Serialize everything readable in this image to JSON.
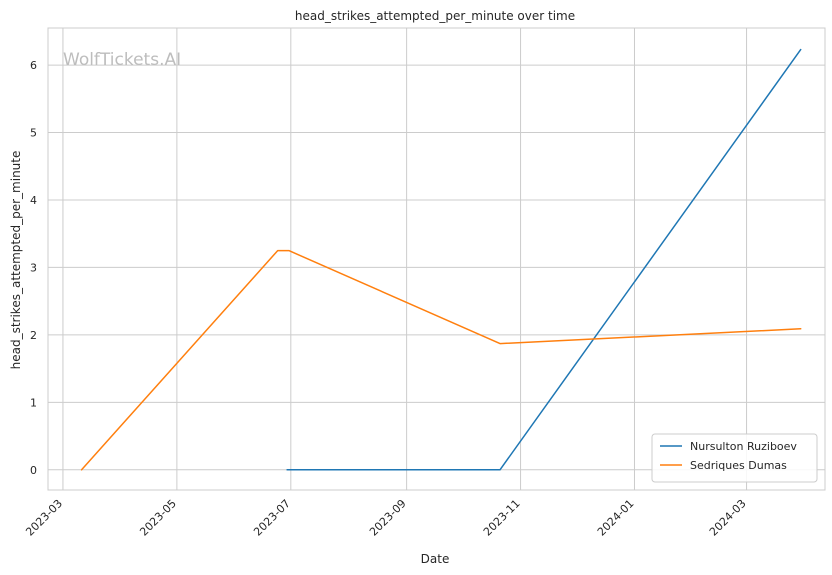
{
  "chart_data": {
    "type": "line",
    "title": "head_strikes_attempted_per_minute over time",
    "xlabel": "Date",
    "ylabel": "head_strikes_attempted_per_minute",
    "watermark": "WolfTickets.AI",
    "x_axis_type": "date",
    "xlim": [
      "2023-02-21",
      "2024-04-12"
    ],
    "ylim": [
      -0.3,
      6.55
    ],
    "x_ticks": [
      "2023-03-01",
      "2023-05-01",
      "2023-07-01",
      "2023-09-01",
      "2023-11-01",
      "2024-01-01",
      "2024-03-01"
    ],
    "x_tick_labels": [
      "2023-03",
      "2023-05",
      "2023-07",
      "2023-09",
      "2023-11",
      "2024-01",
      "2024-03"
    ],
    "y_ticks": [
      0,
      1,
      2,
      3,
      4,
      5,
      6
    ],
    "grid": true,
    "legend_position": "bottom-right",
    "series": [
      {
        "name": "Nursulton Ruziboev",
        "color": "#1f77b4",
        "x": [
          "2023-06-29",
          "2023-10-21",
          "2024-03-30"
        ],
        "values": [
          0,
          0,
          6.23
        ]
      },
      {
        "name": "Sedriques Dumas",
        "color": "#ff7f0e",
        "x": [
          "2023-03-11",
          "2023-06-24",
          "2023-06-30",
          "2023-10-21",
          "2024-03-30"
        ],
        "values": [
          0,
          3.25,
          3.25,
          1.87,
          2.09
        ]
      }
    ]
  }
}
